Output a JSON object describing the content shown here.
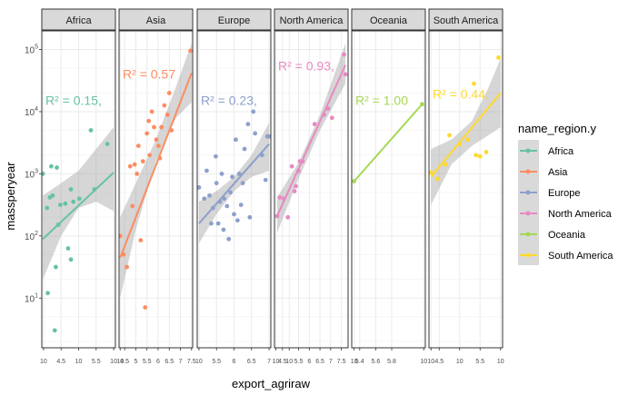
{
  "chart_data": {
    "type": "scatter",
    "xlabel": "export_agriraw",
    "ylabel": "massperyear",
    "y_scale": "log10",
    "y_range": [
      0.2,
      5.3
    ],
    "y_ticks": [
      {
        "exp": 1,
        "label": "10",
        "sup": "1"
      },
      {
        "exp": 2,
        "label": "10",
        "sup": "2"
      },
      {
        "exp": 3,
        "label": "10",
        "sup": "3"
      },
      {
        "exp": 4,
        "label": "10",
        "sup": "4"
      },
      {
        "exp": 5,
        "label": "10",
        "sup": "5"
      }
    ],
    "legend": {
      "title": "name_region.y",
      "placement": "right",
      "items": [
        {
          "label": "Africa",
          "color": "#66C2A5"
        },
        {
          "label": "Asia",
          "color": "#FC8D62"
        },
        {
          "label": "Europe",
          "color": "#8DA0CB"
        },
        {
          "label": "North America",
          "color": "#E78AC3"
        },
        {
          "label": "Oceania",
          "color": "#A6D854"
        },
        {
          "label": "South America",
          "color": "#FFD92F"
        }
      ]
    },
    "grid": true,
    "facets": [
      {
        "name": "Africa",
        "color": "#66C2A5",
        "r2_label": "R² = 0.15, ",
        "xlim": [
          3.95,
          6.05
        ],
        "x_ticks": [
          {
            "v": 4,
            "t": "10"
          },
          {
            "v": 4.5,
            "t": "4.5"
          },
          {
            "v": 5,
            "t": "10"
          },
          {
            "v": 5.5,
            "t": "5.5"
          },
          {
            "v": 6,
            "t": "10"
          }
        ],
        "points": [
          [
            3.98,
            3.0
          ],
          [
            4.1,
            2.45
          ],
          [
            4.18,
            2.62
          ],
          [
            4.22,
            3.12
          ],
          [
            4.26,
            2.65
          ],
          [
            4.38,
            3.1
          ],
          [
            4.42,
            2.18
          ],
          [
            4.48,
            2.5
          ],
          [
            4.62,
            2.52
          ],
          [
            4.78,
            2.75
          ],
          [
            4.85,
            2.55
          ],
          [
            5.02,
            2.6
          ],
          [
            5.35,
            3.7
          ],
          [
            5.45,
            2.75
          ],
          [
            5.82,
            3.48
          ],
          [
            4.12,
            1.08
          ],
          [
            4.32,
            0.48
          ],
          [
            4.35,
            1.5
          ],
          [
            4.7,
            1.8
          ],
          [
            4.78,
            1.62
          ]
        ],
        "fit": [
          [
            3.98,
            1.95
          ],
          [
            6.0,
            3.02
          ]
        ],
        "band_lo": [
          [
            3.98,
            1.3
          ],
          [
            4.5,
            2.0
          ],
          [
            5.0,
            2.45
          ],
          [
            5.5,
            2.55
          ],
          [
            6.0,
            2.4
          ]
        ],
        "band_hi": [
          [
            3.98,
            2.65
          ],
          [
            4.5,
            2.85
          ],
          [
            5.0,
            3.05
          ],
          [
            5.5,
            3.4
          ],
          [
            6.0,
            3.75
          ]
        ]
      },
      {
        "name": "Asia",
        "color": "#FC8D62",
        "r2_label": "R² = 0.57",
        "xlim": [
          4.25,
          7.55
        ],
        "x_ticks": [
          {
            "v": 4.3,
            "t": "10"
          },
          {
            "v": 4.5,
            "t": "4.5"
          },
          {
            "v": 5,
            "t": "5"
          },
          {
            "v": 5.5,
            "t": "5.5"
          },
          {
            "v": 6,
            "t": "6"
          },
          {
            "v": 6.5,
            "t": "6.5"
          },
          {
            "v": 7,
            "t": "7"
          },
          {
            "v": 7.5,
            "t": "7.5"
          }
        ],
        "points": [
          [
            4.3,
            2.0
          ],
          [
            4.45,
            1.7
          ],
          [
            4.6,
            1.5
          ],
          [
            4.75,
            3.12
          ],
          [
            4.85,
            2.48
          ],
          [
            4.95,
            3.15
          ],
          [
            5.05,
            3.0
          ],
          [
            5.12,
            3.45
          ],
          [
            5.22,
            1.93
          ],
          [
            5.32,
            3.2
          ],
          [
            5.42,
            0.85
          ],
          [
            5.5,
            3.65
          ],
          [
            5.62,
            3.3
          ],
          [
            5.72,
            4.0
          ],
          [
            5.82,
            3.75
          ],
          [
            5.92,
            3.55
          ],
          [
            6.02,
            3.45
          ],
          [
            6.15,
            3.75
          ],
          [
            6.28,
            4.1
          ],
          [
            6.42,
            3.95
          ],
          [
            7.45,
            4.98
          ],
          [
            6.5,
            4.3
          ],
          [
            6.6,
            3.7
          ],
          [
            6.08,
            3.25
          ],
          [
            5.58,
            3.85
          ]
        ],
        "fit": [
          [
            4.3,
            1.65
          ],
          [
            7.5,
            4.62
          ]
        ],
        "band_lo": [
          [
            4.3,
            1.0
          ],
          [
            5.0,
            2.1
          ],
          [
            5.9,
            3.2
          ],
          [
            6.8,
            3.9
          ],
          [
            7.5,
            4.15
          ]
        ],
        "band_hi": [
          [
            4.3,
            2.3
          ],
          [
            5.0,
            2.85
          ],
          [
            5.9,
            3.55
          ],
          [
            6.8,
            4.4
          ],
          [
            7.5,
            5.1
          ]
        ]
      },
      {
        "name": "Europe",
        "color": "#8DA0CB",
        "r2_label": "R² = 0.23, ",
        "xlim": [
          4.95,
          7.05
        ],
        "x_ticks": [
          {
            "v": 5,
            "t": "10"
          },
          {
            "v": 5.5,
            "t": "5.5"
          },
          {
            "v": 6,
            "t": "6"
          },
          {
            "v": 6.5,
            "t": "6.5"
          },
          {
            "v": 7,
            "t": "7"
          }
        ],
        "points": [
          [
            5.0,
            2.78
          ],
          [
            5.15,
            2.6
          ],
          [
            5.22,
            3.05
          ],
          [
            5.3,
            2.65
          ],
          [
            5.35,
            2.2
          ],
          [
            5.4,
            2.45
          ],
          [
            5.48,
            3.28
          ],
          [
            5.5,
            2.85
          ],
          [
            5.55,
            2.2
          ],
          [
            5.6,
            2.55
          ],
          [
            5.65,
            3.0
          ],
          [
            5.7,
            2.1
          ],
          [
            5.72,
            2.6
          ],
          [
            5.8,
            2.48
          ],
          [
            5.85,
            1.95
          ],
          [
            5.9,
            2.7
          ],
          [
            5.95,
            2.95
          ],
          [
            6.0,
            2.35
          ],
          [
            6.05,
            3.55
          ],
          [
            6.1,
            2.25
          ],
          [
            6.15,
            3.0
          ],
          [
            6.2,
            2.5
          ],
          [
            6.25,
            2.85
          ],
          [
            6.3,
            3.4
          ],
          [
            6.4,
            3.8
          ],
          [
            6.45,
            2.3
          ],
          [
            6.55,
            4.0
          ],
          [
            6.6,
            3.65
          ],
          [
            6.8,
            3.3
          ],
          [
            6.9,
            2.9
          ],
          [
            6.95,
            3.6
          ],
          [
            7.0,
            3.6
          ]
        ],
        "fit": [
          [
            5.0,
            2.2
          ],
          [
            7.0,
            3.48
          ]
        ],
        "band_lo": [
          [
            5.0,
            1.88
          ],
          [
            5.5,
            2.35
          ],
          [
            6.0,
            2.72
          ],
          [
            6.5,
            2.95
          ],
          [
            7.0,
            3.05
          ]
        ],
        "band_hi": [
          [
            5.0,
            2.55
          ],
          [
            5.5,
            2.72
          ],
          [
            6.0,
            2.95
          ],
          [
            6.5,
            3.3
          ],
          [
            7.0,
            3.82
          ]
        ]
      },
      {
        "name": "North America",
        "color": "#E78AC3",
        "r2_label": "R² = 0.93, ",
        "xlim": [
          4.3,
          7.05
        ],
        "x_ticks": [
          {
            "v": 4.35,
            "t": "10"
          },
          {
            "v": 4.6,
            "t": "4.5"
          },
          {
            "v": 4.85,
            "t": "10"
          },
          {
            "v": 5.2,
            "t": "5.5"
          },
          {
            "v": 5.6,
            "t": "6"
          },
          {
            "v": 6.0,
            "t": "6.5"
          },
          {
            "v": 6.4,
            "t": "7"
          },
          {
            "v": 6.8,
            "t": "7.5"
          }
        ],
        "points": [
          [
            4.4,
            2.32
          ],
          [
            4.5,
            2.62
          ],
          [
            4.65,
            2.6
          ],
          [
            4.8,
            2.3
          ],
          [
            4.95,
            3.12
          ],
          [
            5.05,
            2.72
          ],
          [
            5.1,
            2.8
          ],
          [
            5.2,
            3.05
          ],
          [
            5.25,
            3.2
          ],
          [
            5.35,
            3.2
          ],
          [
            5.8,
            3.8
          ],
          [
            6.15,
            3.95
          ],
          [
            6.3,
            4.05
          ],
          [
            6.45,
            3.9
          ],
          [
            6.9,
            4.92
          ],
          [
            6.95,
            4.6
          ]
        ],
        "fit": [
          [
            4.4,
            2.32
          ],
          [
            6.95,
            4.75
          ]
        ],
        "band_lo": [
          [
            4.4,
            2.05
          ],
          [
            5.2,
            2.92
          ],
          [
            6.0,
            3.7
          ],
          [
            6.95,
            4.45
          ]
        ],
        "band_hi": [
          [
            4.4,
            2.62
          ],
          [
            5.2,
            3.18
          ],
          [
            6.0,
            3.95
          ],
          [
            6.95,
            5.1
          ]
        ]
      },
      {
        "name": "Oceania",
        "color": "#A6D854",
        "r2_label": "R² = 1.00",
        "xlim": [
          5.1,
          6.02
        ],
        "x_ticks": [
          {
            "v": 5.13,
            "t": "10"
          },
          {
            "v": 5.2,
            "t": "5.4"
          },
          {
            "v": 5.4,
            "t": "5.6"
          },
          {
            "v": 5.6,
            "t": "5.8"
          },
          {
            "v": 6.0,
            "t": "10"
          }
        ],
        "points": [
          [
            5.13,
            2.88
          ],
          [
            5.98,
            4.12
          ]
        ],
        "fit": [
          [
            5.13,
            2.88
          ],
          [
            5.98,
            4.12
          ]
        ],
        "band_lo": [],
        "band_hi": []
      },
      {
        "name": "South America",
        "color": "#FFD92F",
        "r2_label": "R² = 0.44, ",
        "xlim": [
          4.25,
          6.05
        ],
        "x_ticks": [
          {
            "v": 4.3,
            "t": "10"
          },
          {
            "v": 4.5,
            "t": "4.5"
          },
          {
            "v": 5,
            "t": "10"
          },
          {
            "v": 5.5,
            "t": "5.5"
          },
          {
            "v": 6,
            "t": "10"
          }
        ],
        "points": [
          [
            4.3,
            3.02
          ],
          [
            4.45,
            2.92
          ],
          [
            4.65,
            3.15
          ],
          [
            4.75,
            3.62
          ],
          [
            5.0,
            3.48
          ],
          [
            5.2,
            3.55
          ],
          [
            5.35,
            4.45
          ],
          [
            5.4,
            3.3
          ],
          [
            5.5,
            3.28
          ],
          [
            5.65,
            3.35
          ],
          [
            5.95,
            4.87
          ]
        ],
        "fit": [
          [
            4.3,
            2.95
          ],
          [
            6.0,
            4.3
          ]
        ],
        "band_lo": [
          [
            4.3,
            2.5
          ],
          [
            4.8,
            3.15
          ],
          [
            5.3,
            3.45
          ],
          [
            5.7,
            3.62
          ],
          [
            6.0,
            3.75
          ]
        ],
        "band_hi": [
          [
            4.3,
            3.4
          ],
          [
            4.8,
            3.55
          ],
          [
            5.3,
            3.85
          ],
          [
            5.7,
            4.38
          ],
          [
            6.0,
            4.85
          ]
        ]
      }
    ]
  }
}
